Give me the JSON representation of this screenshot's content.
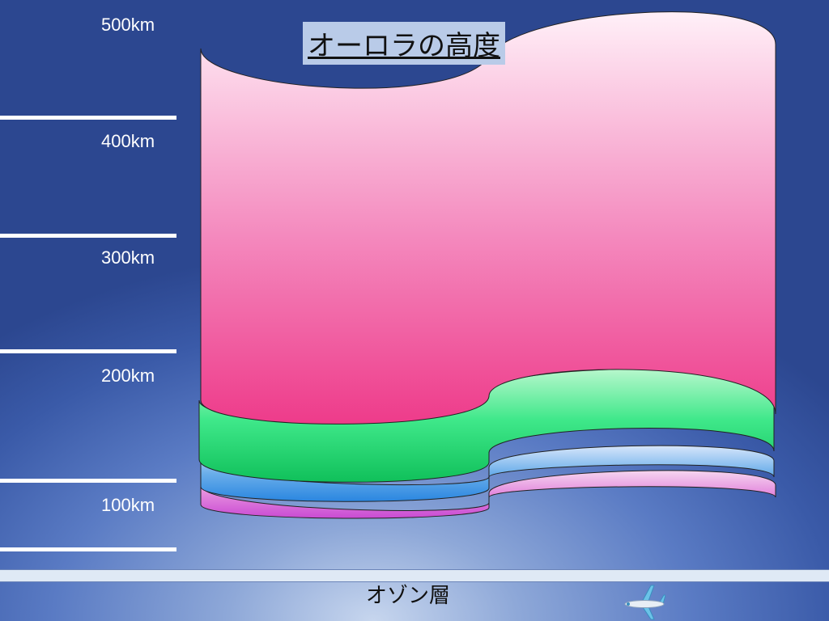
{
  "title": "オーロラの高度",
  "altitude_labels": [
    "500km",
    "400km",
    "300km",
    "200km",
    "100km"
  ],
  "ozone_label": "オゾン層",
  "bands": [
    {
      "name": "pink-aurora",
      "colors": [
        "#fff0f8",
        "#f488bd",
        "#ee3b8a"
      ]
    },
    {
      "name": "green-aurora",
      "colors": [
        "#b8f7cd",
        "#3fe88a",
        "#10c05a"
      ]
    },
    {
      "name": "blue-aurora",
      "colors": [
        "#d7e6fb",
        "#6aaeea",
        "#2a86e0"
      ]
    },
    {
      "name": "magenta-aurora",
      "colors": [
        "#f6d6f0",
        "#e388dd",
        "#c94ad3"
      ]
    }
  ],
  "icons": [
    "airplane-icon"
  ]
}
